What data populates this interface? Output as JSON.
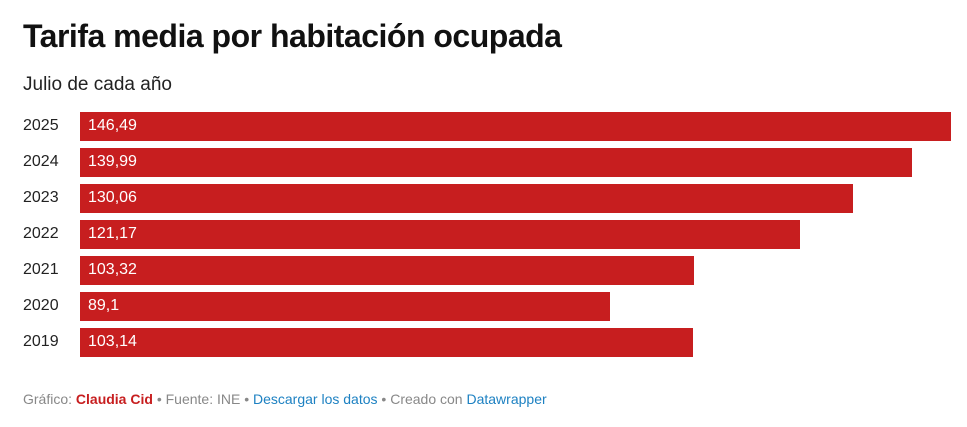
{
  "title": "Tarifa media por habitación ocupada",
  "subtitle": "Julio de cada año",
  "chart_data": {
    "type": "bar",
    "orientation": "horizontal",
    "categories": [
      "2025",
      "2024",
      "2023",
      "2022",
      "2021",
      "2020",
      "2019"
    ],
    "values": [
      146.49,
      139.99,
      130.06,
      121.17,
      103.32,
      89.1,
      103.14
    ],
    "labels": [
      "146,49",
      "139,99",
      "130,06",
      "121,17",
      "103,32",
      "89,1",
      "103,14"
    ],
    "xlim": [
      0,
      146.49
    ],
    "color": "#c71e1f"
  },
  "footer": {
    "grafico_label": "Gráfico:",
    "author": "Claudia Cid",
    "sep1": "•",
    "source": "Fuente: INE",
    "sep2": "•",
    "download": "Descargar los datos",
    "sep3": "•",
    "created": "Creado con",
    "tool": "Datawrapper"
  }
}
